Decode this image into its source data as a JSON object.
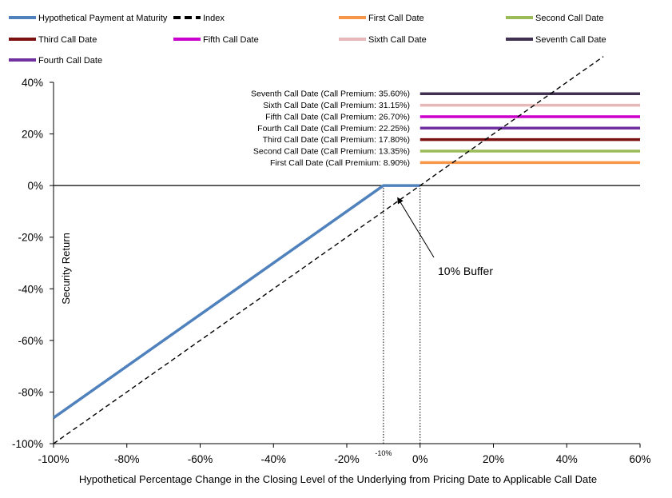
{
  "chart_data": {
    "type": "line",
    "title": "",
    "xlabel": "Hypothetical Percentage Change in the Closing Level of the Underlying from Pricing Date to Applicable Call Date",
    "ylabel": "Security Return",
    "xlim": [
      -100,
      60
    ],
    "ylim": [
      -100,
      40
    ],
    "x_ticks": [
      -100,
      -80,
      -60,
      -40,
      -20,
      0,
      20,
      40,
      60
    ],
    "x_tick_labels": [
      "-100%",
      "-80%",
      "-60%",
      "-40%",
      "-20%",
      "0%",
      "20%",
      "40%",
      "60%"
    ],
    "y_ticks": [
      -100,
      -80,
      -60,
      -40,
      -20,
      0,
      20,
      40
    ],
    "y_tick_labels": [
      "-100%",
      "-80%",
      "-60%",
      "-40%",
      "-20%",
      "0%",
      "20%",
      "40%"
    ],
    "extra_x_label": {
      "x": -10,
      "text": "-10%"
    },
    "buffer_label": "10% Buffer",
    "buffer_arrow_target": {
      "x": -6,
      "y": -5
    },
    "legend": [
      {
        "name": "Hypothetical Payment at Maturity",
        "color": "#4f81bd",
        "style": "solid"
      },
      {
        "name": "Index",
        "color": "#000000",
        "style": "dashed"
      },
      {
        "name": "First Call Date",
        "color": "#f79646",
        "style": "solid"
      },
      {
        "name": "Second Call Date",
        "color": "#9bbb59",
        "style": "solid"
      },
      {
        "name": "Third Call Date",
        "color": "#7b1010",
        "style": "solid"
      },
      {
        "name": "Fifth Call Date",
        "color": "#cc00cc",
        "style": "solid"
      },
      {
        "name": "Sixth Call Date",
        "color": "#e6b9b8",
        "style": "solid"
      },
      {
        "name": "Seventh Call Date",
        "color": "#403152",
        "style": "solid"
      },
      {
        "name": "Fourth Call Date",
        "color": "#7030a0",
        "style": "solid"
      }
    ],
    "series": [
      {
        "name": "Hypothetical Payment at Maturity",
        "x": [
          -100,
          -10,
          0
        ],
        "y": [
          -90,
          0,
          0
        ],
        "color": "#4f81bd"
      },
      {
        "name": "Index",
        "x": [
          -100,
          50
        ],
        "y": [
          -100,
          50
        ],
        "color": "#000000"
      }
    ],
    "call_dates": [
      {
        "name": "Seventh Call Date",
        "label": "Seventh  Call Date (Call Premium: 35.60%)",
        "premium": 35.6,
        "x_range": [
          0,
          60
        ],
        "color": "#403152"
      },
      {
        "name": "Sixth Call Date",
        "label": "Sixth Call Date (Call Premium: 31.15%)",
        "premium": 31.15,
        "x_range": [
          0,
          60
        ],
        "color": "#e6b9b8"
      },
      {
        "name": "Fifth Call Date",
        "label": "Fifth Call Date (Call Premium: 26.70%)",
        "premium": 26.7,
        "x_range": [
          0,
          60
        ],
        "color": "#cc00cc"
      },
      {
        "name": "Fourth Call Date",
        "label": "Fourth Call Date (Call Premium: 22.25%)",
        "premium": 22.25,
        "x_range": [
          0,
          60
        ],
        "color": "#7030a0"
      },
      {
        "name": "Third Call Date",
        "label": "Third Call Date (Call Premium: 17.80%)",
        "premium": 17.8,
        "x_range": [
          0,
          60
        ],
        "color": "#7b1010"
      },
      {
        "name": "Second Call Date",
        "label": "Second Call Date (Call Premium: 13.35%)",
        "premium": 13.35,
        "x_range": [
          0,
          60
        ],
        "color": "#9bbb59"
      },
      {
        "name": "First Call Date",
        "label": "First Call Date (Call Premium: 8.90%)",
        "premium": 8.9,
        "x_range": [
          0,
          60
        ],
        "color": "#f79646"
      }
    ],
    "reference_lines": [
      {
        "x": -10,
        "y_range": [
          -100,
          0
        ],
        "style": "dotted"
      },
      {
        "x": 0,
        "y_range": [
          -100,
          0
        ],
        "style": "dotted"
      }
    ]
  }
}
